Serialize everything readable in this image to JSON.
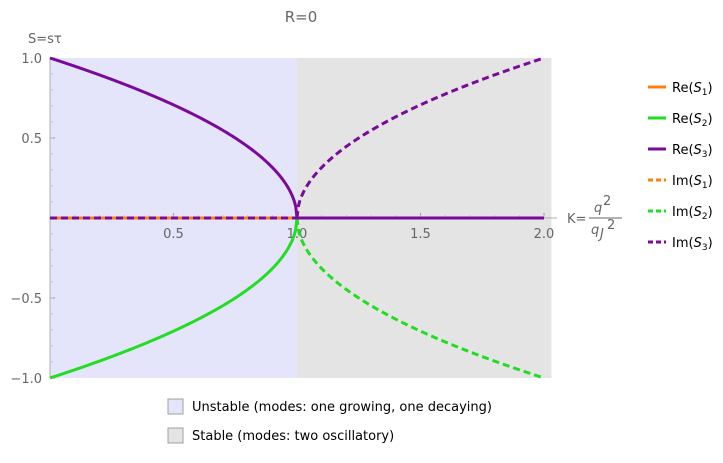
{
  "chart_data": {
    "type": "line",
    "title": "R=0",
    "xlabel": "K=q²/q_J²",
    "ylabel": "S=sτ",
    "xlim": [
      0,
      2.03
    ],
    "ylim": [
      -1,
      1
    ],
    "xticks": [
      0.5,
      1.0,
      1.5,
      2.0
    ],
    "yticks": [
      1.0,
      0.5,
      -0.5,
      -1.0
    ],
    "x": [
      0.0,
      0.1,
      0.2,
      0.3,
      0.4,
      0.5,
      0.6,
      0.7,
      0.8,
      0.9,
      0.95,
      0.99,
      1.0,
      1.01,
      1.05,
      1.1,
      1.2,
      1.3,
      1.4,
      1.5,
      1.6,
      1.7,
      1.8,
      1.9,
      2.0
    ],
    "series": [
      {
        "name": "Re(S1)",
        "color": "#ff7f0e",
        "style": "solid",
        "values": [
          0,
          0,
          0,
          0,
          0,
          0,
          0,
          0,
          0,
          0,
          0,
          0,
          0,
          0,
          0,
          0,
          0,
          0,
          0,
          0,
          0,
          0,
          0,
          0,
          0
        ]
      },
      {
        "name": "Re(S2)",
        "color": "#22dd22",
        "style": "solid",
        "values": [
          -1.0,
          -0.949,
          -0.894,
          -0.837,
          -0.775,
          -0.707,
          -0.632,
          -0.548,
          -0.447,
          -0.316,
          -0.224,
          -0.1,
          0,
          0,
          0,
          0,
          0,
          0,
          0,
          0,
          0,
          0,
          0,
          0,
          0
        ]
      },
      {
        "name": "Re(S3)",
        "color": "#7a0a9a",
        "style": "solid",
        "values": [
          1.0,
          0.949,
          0.894,
          0.837,
          0.775,
          0.707,
          0.632,
          0.548,
          0.447,
          0.316,
          0.224,
          0.1,
          0,
          0,
          0,
          0,
          0,
          0,
          0,
          0,
          0,
          0,
          0,
          0,
          0
        ]
      },
      {
        "name": "Im(S1)",
        "color": "#ff7f0e",
        "style": "dashed",
        "values": [
          0,
          0,
          0,
          0,
          0,
          0,
          0,
          0,
          0,
          0,
          0,
          0,
          0,
          0,
          0,
          0,
          0,
          0,
          0,
          0,
          0,
          0,
          0,
          0,
          0
        ]
      },
      {
        "name": "Im(S2)",
        "color": "#22dd22",
        "style": "dashed",
        "values": [
          0,
          0,
          0,
          0,
          0,
          0,
          0,
          0,
          0,
          0,
          0,
          0,
          0,
          -0.1,
          -0.224,
          -0.316,
          -0.447,
          -0.548,
          -0.632,
          -0.707,
          -0.775,
          -0.837,
          -0.894,
          -0.949,
          -1.0
        ]
      },
      {
        "name": "Im(S3)",
        "color": "#7a0a9a",
        "style": "dashed",
        "values": [
          0,
          0,
          0,
          0,
          0,
          0,
          0,
          0,
          0,
          0,
          0,
          0,
          0,
          0.1,
          0.224,
          0.316,
          0.447,
          0.548,
          0.632,
          0.707,
          0.775,
          0.837,
          0.894,
          0.949,
          1.0
        ]
      }
    ],
    "regions": [
      {
        "label": "Unstable (modes: one growing, one decaying)",
        "x_from": 0,
        "x_to": 1,
        "color": "#e4e4fb"
      },
      {
        "label": "Stable (modes: two oscillatory)",
        "x_from": 1,
        "x_to": 2.03,
        "color": "#e4e4e4"
      }
    ],
    "grid": false,
    "legend_position": "right"
  },
  "legend": {
    "items": [
      {
        "prefix": "Re(",
        "var": "S",
        "sub": "1",
        "suffix": ")",
        "color": "#ff7f0e",
        "style": "solid"
      },
      {
        "prefix": "Re(",
        "var": "S",
        "sub": "2",
        "suffix": ")",
        "color": "#22dd22",
        "style": "solid"
      },
      {
        "prefix": "Re(",
        "var": "S",
        "sub": "3",
        "suffix": ")",
        "color": "#7a0a9a",
        "style": "solid"
      },
      {
        "prefix": "Im(",
        "var": "S",
        "sub": "1",
        "suffix": ")",
        "color": "#ff7f0e",
        "style": "dashed"
      },
      {
        "prefix": "Im(",
        "var": "S",
        "sub": "2",
        "suffix": ")",
        "color": "#22dd22",
        "style": "dashed"
      },
      {
        "prefix": "Im(",
        "var": "S",
        "sub": "3",
        "suffix": ")",
        "color": "#7a0a9a",
        "style": "dashed"
      }
    ]
  }
}
